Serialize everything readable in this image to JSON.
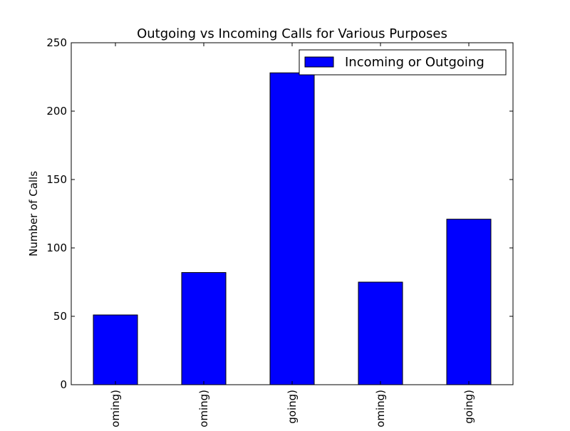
{
  "chart_data": {
    "type": "bar",
    "title": "Outgoing vs Incoming Calls for Various Purposes",
    "xlabel": "",
    "ylabel": "Number of Calls",
    "ylim": [
      0,
      250
    ],
    "yticks": [
      "0",
      "50",
      "100",
      "150",
      "200",
      "250"
    ],
    "categories": [
      "oming)",
      "oming)",
      "going)",
      "oming)",
      "going)"
    ],
    "series": [
      {
        "name": "Incoming or Outgoing",
        "values": [
          51,
          82,
          228,
          75,
          121
        ],
        "color": "#0000ff"
      }
    ],
    "grid": false,
    "legend_position": "top-right"
  }
}
